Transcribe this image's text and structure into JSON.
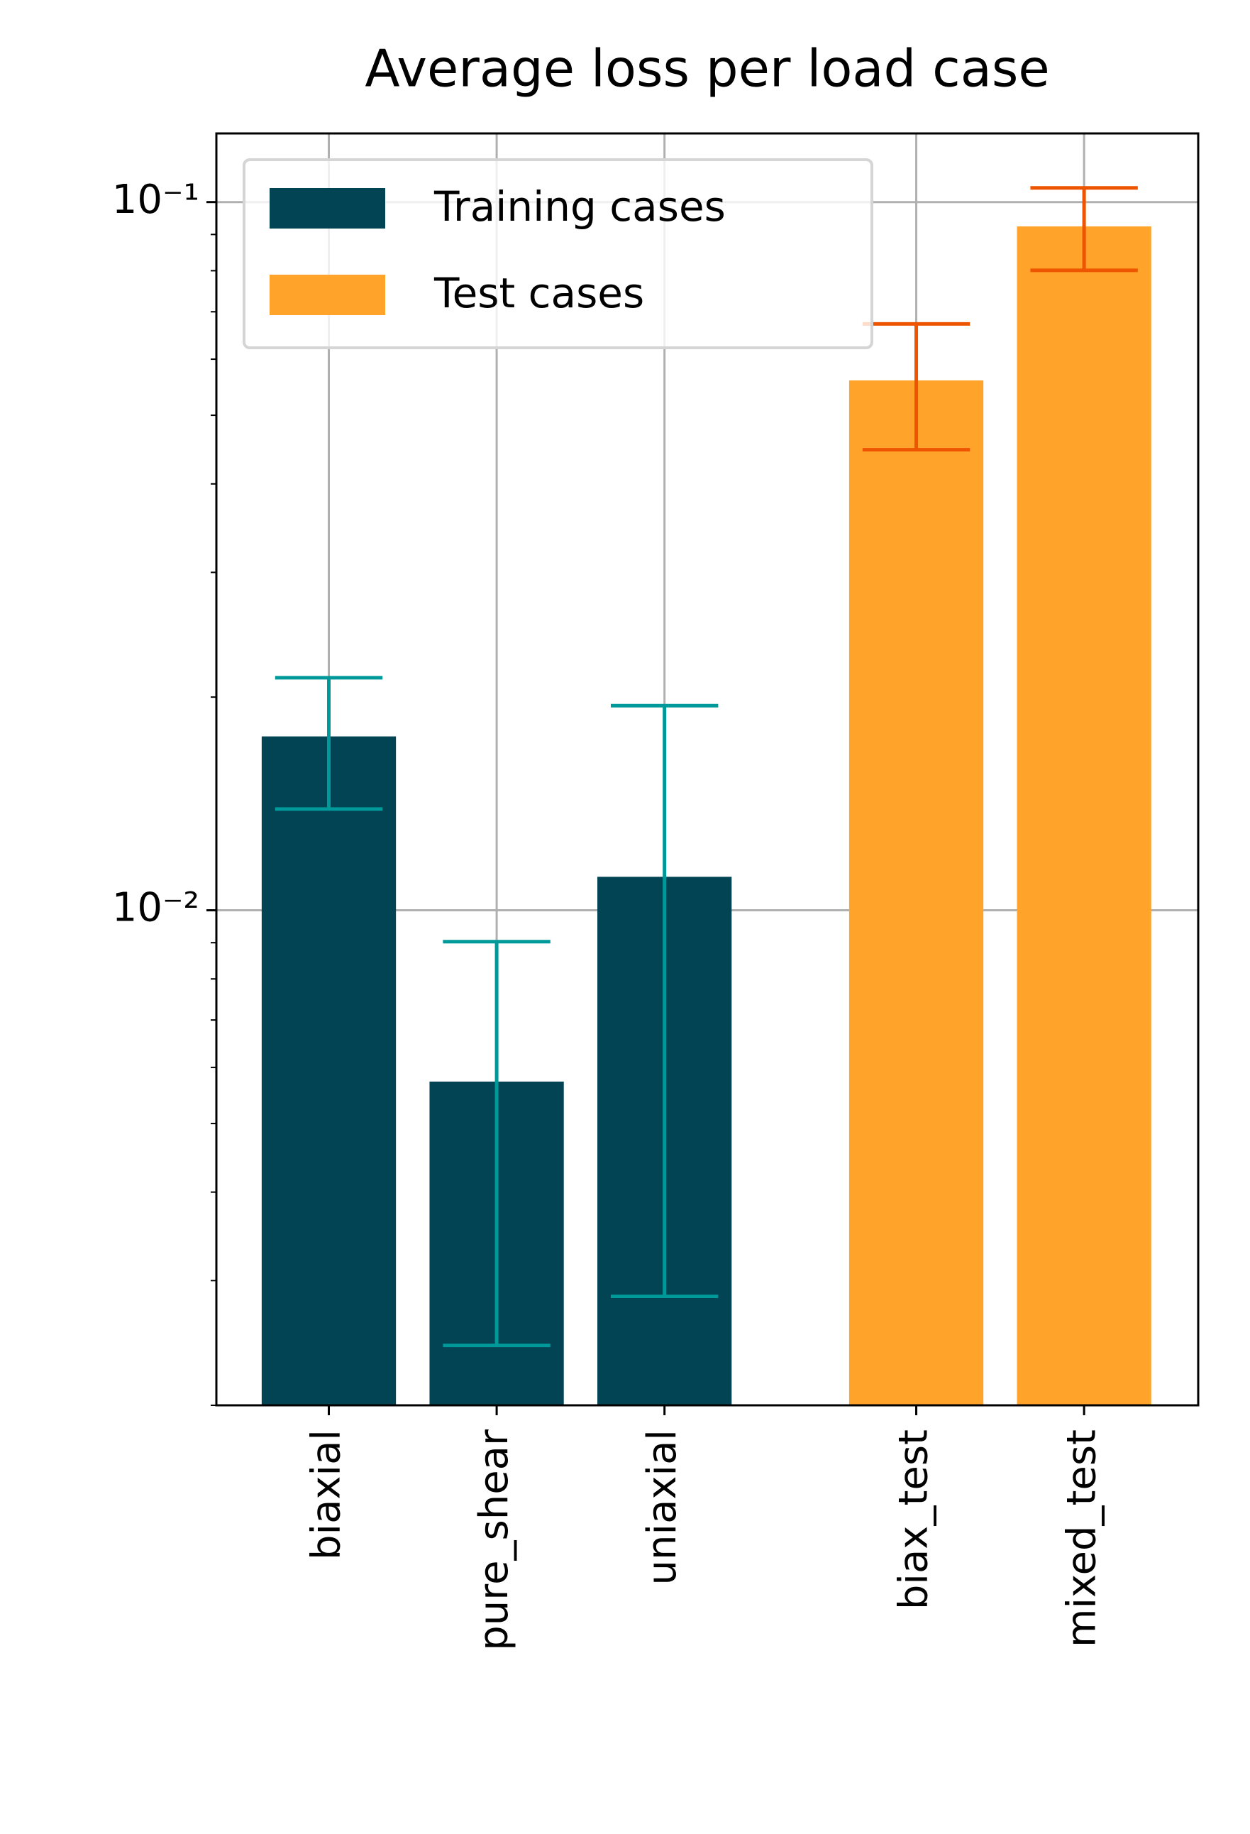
{
  "chart_data": {
    "type": "bar",
    "title": "Average loss per load case",
    "categories": [
      "biaxial",
      "pure_shear",
      "uniaxial",
      "biax_test",
      "mixed_test"
    ],
    "x": [
      0,
      1,
      2,
      3.5,
      4.5
    ],
    "bar_width": 0.8,
    "series": [
      {
        "name": "Training cases",
        "color": "#024454",
        "error_color": "#009999",
        "values": [
          0.0176,
          0.00573,
          0.01115,
          null,
          null
        ],
        "errors": [
          0.0037,
          0.0033,
          0.0083,
          null,
          null
        ]
      },
      {
        "name": "Test cases",
        "color": "#ffa32a",
        "error_color": "#ee5500",
        "values": [
          null,
          null,
          null,
          0.056,
          0.0924
        ],
        "errors": [
          null,
          null,
          null,
          0.0113,
          0.0123
        ]
      }
    ],
    "xlim": [
      -0.67,
      5.18
    ],
    "ylim": [
      0.002,
      0.125
    ],
    "ylog": true,
    "yticks": [
      {
        "value": 0.01,
        "label": "10⁻²"
      },
      {
        "value": 0.1,
        "label": "10⁻¹"
      }
    ],
    "yminorticks": [
      0.002,
      0.003,
      0.004,
      0.005,
      0.006,
      0.007,
      0.008,
      0.009,
      0.02,
      0.03,
      0.04,
      0.05,
      0.06,
      0.07,
      0.08,
      0.09
    ],
    "grid": true,
    "legend": "upper left"
  }
}
